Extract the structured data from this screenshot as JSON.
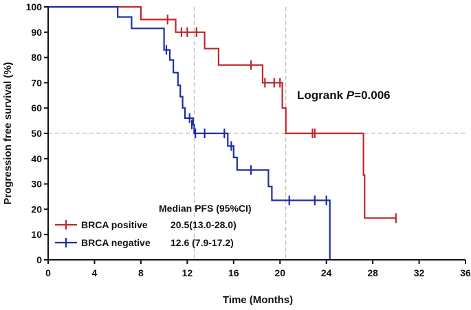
{
  "chart_data": {
    "type": "line",
    "title": "",
    "xlabel": "Time (Months)",
    "ylabel": "Progression free survival (%)",
    "xlim": [
      0,
      36
    ],
    "ylim": [
      0,
      100
    ],
    "xticks": [
      0,
      4,
      8,
      12,
      16,
      20,
      24,
      28,
      32,
      36
    ],
    "yticks": [
      0,
      10,
      20,
      30,
      40,
      50,
      60,
      70,
      80,
      90,
      100
    ],
    "reference_lines": {
      "y": [
        50
      ],
      "x": [
        12.6,
        20.5
      ]
    },
    "annotation": {
      "text_prefix": "Logrank ",
      "p_symbol": "P",
      "text_suffix": "=0.006"
    },
    "legend": {
      "position": "bottom-left",
      "header": "Median PFS (95%CI)"
    },
    "series": [
      {
        "name": "BRCA positive",
        "median": "20.5(13.0-28.0)",
        "color": "#c0262a",
        "steps": [
          [
            0,
            100
          ],
          [
            8,
            100
          ],
          [
            8,
            95
          ],
          [
            11,
            95
          ],
          [
            11,
            90
          ],
          [
            13.5,
            90
          ],
          [
            13.5,
            83.5
          ],
          [
            14.7,
            83.5
          ],
          [
            14.7,
            77
          ],
          [
            18.5,
            77
          ],
          [
            18.5,
            70
          ],
          [
            20.2,
            70
          ],
          [
            20.2,
            60
          ],
          [
            20.5,
            60
          ],
          [
            20.5,
            50
          ],
          [
            27.2,
            50
          ],
          [
            27.2,
            33.5
          ],
          [
            27.3,
            33.5
          ],
          [
            27.3,
            16.5
          ],
          [
            30,
            16.5
          ]
        ],
        "censored": [
          [
            10.3,
            95
          ],
          [
            11.5,
            90
          ],
          [
            12,
            90
          ],
          [
            12.8,
            90
          ],
          [
            17.5,
            77
          ],
          [
            18.7,
            70
          ],
          [
            19.5,
            70
          ],
          [
            20,
            70
          ],
          [
            22.8,
            50
          ],
          [
            23,
            50
          ],
          [
            30,
            16.5
          ]
        ]
      },
      {
        "name": "BRCA negative",
        "median": "12.6 (7.9-17.2)",
        "color": "#1b2ea6",
        "steps": [
          [
            0,
            100
          ],
          [
            6,
            100
          ],
          [
            6,
            96
          ],
          [
            7.2,
            96
          ],
          [
            7.2,
            91.5
          ],
          [
            10,
            91.5
          ],
          [
            10,
            83
          ],
          [
            10.5,
            83
          ],
          [
            10.5,
            79
          ],
          [
            10.8,
            79
          ],
          [
            10.8,
            74
          ],
          [
            11.2,
            74
          ],
          [
            11.2,
            69
          ],
          [
            11.4,
            69
          ],
          [
            11.4,
            64.5
          ],
          [
            11.6,
            64.5
          ],
          [
            11.6,
            60
          ],
          [
            11.8,
            60
          ],
          [
            11.8,
            56
          ],
          [
            12.5,
            56
          ],
          [
            12.5,
            53.5
          ],
          [
            12.6,
            53.5
          ],
          [
            12.6,
            50
          ],
          [
            15.5,
            50
          ],
          [
            15.5,
            45
          ],
          [
            16,
            45
          ],
          [
            16,
            40.5
          ],
          [
            16.3,
            40.5
          ],
          [
            16.3,
            35.5
          ],
          [
            19,
            35.5
          ],
          [
            19,
            29
          ],
          [
            19.3,
            29
          ],
          [
            19.3,
            23.5
          ],
          [
            24.3,
            23.5
          ],
          [
            24.3,
            0
          ]
        ],
        "censored": [
          [
            10.2,
            83
          ],
          [
            12.2,
            56
          ],
          [
            12.4,
            53.5
          ],
          [
            12.7,
            50
          ],
          [
            13.5,
            50
          ],
          [
            15.2,
            50
          ],
          [
            15.8,
            45
          ],
          [
            17.5,
            35.5
          ],
          [
            20.8,
            23.5
          ],
          [
            23,
            23.5
          ],
          [
            24,
            23.5
          ]
        ]
      }
    ]
  }
}
